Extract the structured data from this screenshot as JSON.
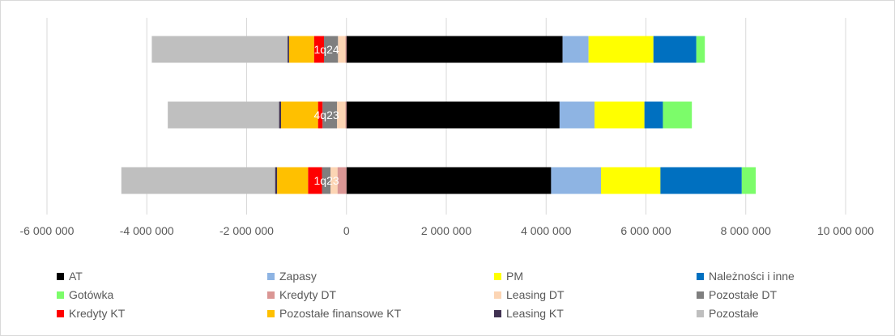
{
  "chart_data": {
    "type": "bar",
    "orientation": "horizontal",
    "stacked": true,
    "categories": [
      "1q24",
      "4q23",
      "1q23"
    ],
    "xlim": [
      -6000000,
      10000000
    ],
    "xticks": [
      -6000000,
      -4000000,
      -2000000,
      0,
      2000000,
      4000000,
      6000000,
      8000000,
      10000000
    ],
    "xtick_labels": [
      "-6 000 000",
      "-4 000 000",
      "-2 000 000",
      "0",
      "2 000 000",
      "4 000 000",
      "6 000 000",
      "8 000 000",
      "10 000 000"
    ],
    "grid": true,
    "legend_position": "bottom",
    "series": [
      {
        "name": "AT",
        "color": "#000000",
        "values": [
          4330000,
          4270000,
          4100000
        ]
      },
      {
        "name": "Zapasy",
        "color": "#8eb4e3",
        "values": [
          520000,
          700000,
          1000000
        ]
      },
      {
        "name": "PM",
        "color": "#ffff00",
        "values": [
          1300000,
          1000000,
          1190000
        ]
      },
      {
        "name": "Należności i inne",
        "color": "#0070c0",
        "values": [
          860000,
          370000,
          1630000
        ]
      },
      {
        "name": "Gotówka",
        "color": "#7cfc6a",
        "values": [
          170000,
          580000,
          280000
        ]
      },
      {
        "name": "Kredyty DT",
        "color": "#da9694",
        "values": [
          -20000,
          -20000,
          -180000
        ]
      },
      {
        "name": "Leasing DT",
        "color": "#fcd5b4",
        "values": [
          -150000,
          -170000,
          -140000
        ]
      },
      {
        "name": "Pozostałe DT",
        "color": "#7f7f7f",
        "values": [
          -280000,
          -290000,
          -170000
        ]
      },
      {
        "name": "Kredyty KT",
        "color": "#ff0000",
        "values": [
          -200000,
          -90000,
          -280000
        ]
      },
      {
        "name": "Pozostałe finansowe KT",
        "color": "#ffc000",
        "values": [
          -500000,
          -740000,
          -620000
        ]
      },
      {
        "name": "Leasing KT",
        "color": "#403151",
        "values": [
          -30000,
          -40000,
          -40000
        ]
      },
      {
        "name": "Pozostałe",
        "color": "#bfbfbf",
        "values": [
          -2720000,
          -2230000,
          -3080000
        ]
      }
    ]
  }
}
